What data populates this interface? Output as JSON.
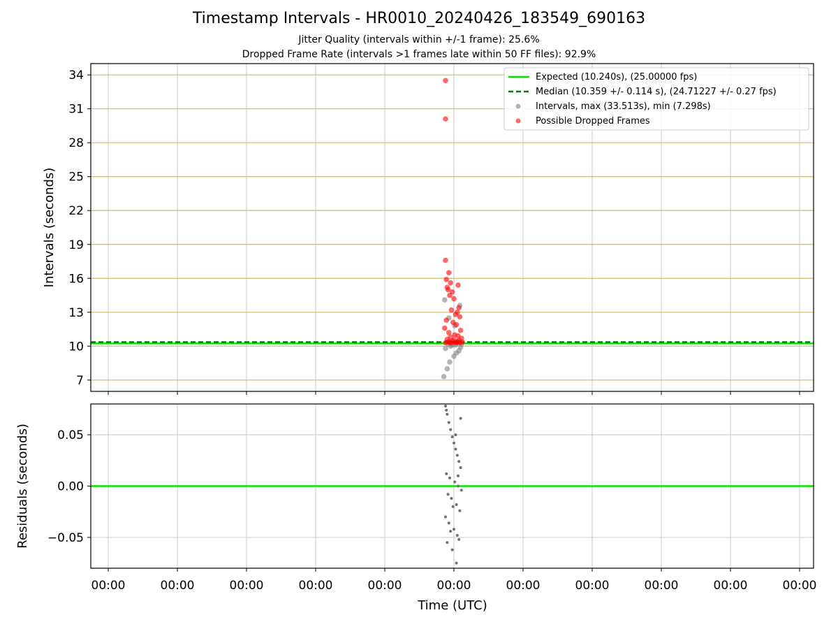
{
  "chart_data": [
    {
      "type": "scatter",
      "title": "Timestamp Intervals - HR0010_20240426_183549_690163",
      "subtitle_lines": [
        "Jitter Quality (intervals within +/-1 frame): 25.6%",
        "Dropped Frame Rate (intervals >1 frames late within 50 FF files): 92.9%"
      ],
      "ylabel": "Intervals (seconds)",
      "ylim": [
        6,
        35
      ],
      "yticks": [
        7,
        10,
        13,
        16,
        19,
        22,
        25,
        28,
        31,
        34
      ],
      "grid": true,
      "legend_position": "top-right",
      "expected": {
        "value": 10.24,
        "color": "#00e600",
        "label": "Expected (10.240s), (25.00000 fps)"
      },
      "median": {
        "value": 10.359,
        "color": "#007f00",
        "label": "Median (10.359 +/- 0.114 s), (24.71227 +/- 0.27 fps)"
      },
      "series": [
        {
          "name": "Intervals, max (33.513s), min (7.298s)",
          "color": "#808080",
          "x": [
            -0.12,
            -0.08,
            -0.05,
            0.0,
            0.03,
            0.06,
            -0.1,
            0.08,
            -0.04,
            0.02,
            -0.07,
            0.05,
            0.09,
            -0.02,
            -0.11,
            0.07,
            -0.06,
            0.01
          ],
          "y": [
            7.3,
            8.0,
            8.6,
            9.1,
            9.4,
            9.6,
            9.8,
            9.9,
            10.0,
            10.1,
            10.2,
            10.3,
            10.2,
            10.1,
            14.1,
            13.6,
            12.5,
            11.8
          ]
        },
        {
          "name": "Possible Dropped Frames",
          "color": "#ff0000",
          "x": [
            -0.1,
            -0.1,
            -0.1,
            -0.06,
            -0.09,
            -0.04,
            -0.08,
            -0.07,
            -0.02,
            0.05,
            -0.05,
            0.0,
            0.06,
            -0.03,
            0.04,
            0.02,
            -0.09,
            0.07,
            -0.01,
            0.03,
            -0.11,
            0.08,
            -0.06,
            0.01,
            0.05,
            -0.04,
            0.09,
            -0.08,
            0.0,
            0.06,
            -0.02,
            0.04,
            -0.07,
            0.1,
            -0.05,
            0.02,
            0.07,
            -0.1,
            0.03,
            -0.03
          ],
          "y": [
            33.5,
            30.1,
            17.6,
            16.5,
            15.9,
            15.6,
            15.2,
            15.0,
            14.8,
            15.4,
            14.5,
            14.2,
            13.4,
            13.2,
            13.0,
            12.8,
            12.3,
            12.6,
            12.1,
            11.9,
            11.6,
            11.4,
            11.2,
            11.0,
            10.9,
            10.8,
            10.7,
            10.6,
            10.55,
            10.5,
            10.45,
            10.4,
            10.38,
            10.36,
            10.34,
            10.33,
            10.32,
            10.31,
            10.3,
            10.29
          ]
        }
      ]
    },
    {
      "type": "scatter",
      "ylabel": "Residuals (seconds)",
      "xlabel": "Time (UTC)",
      "ylim": [
        -0.08,
        0.08
      ],
      "yticks": [
        -0.05,
        0.0,
        0.05
      ],
      "ytick_labels": [
        "−0.05",
        "0.00",
        "0.05"
      ],
      "xtick_labels": [
        "00:00",
        "00:00",
        "00:00",
        "00:00",
        "00:00",
        "00:00",
        "00:00",
        "00:00",
        "00:00",
        "00:00",
        "00:00"
      ],
      "zero_line_color": "#00e600",
      "series": [
        {
          "color": "#707070",
          "x": [
            -0.1,
            -0.08,
            -0.06,
            -0.04,
            -0.02,
            0.0,
            0.02,
            0.04,
            0.06,
            0.08,
            -0.09,
            -0.05,
            0.01,
            0.05,
            0.09,
            -0.07,
            -0.03,
            0.03,
            0.07,
            -0.1,
            -0.06,
            0.0,
            0.04,
            -0.08,
            -0.02,
            0.06,
            -0.04,
            0.02,
            0.08,
            -0.09,
            0.05,
            -0.01,
            0.03
          ],
          "y": [
            0.078,
            0.07,
            0.062,
            0.055,
            0.048,
            0.042,
            0.036,
            0.03,
            0.024,
            0.018,
            0.012,
            0.008,
            0.004,
            0.0,
            -0.004,
            -0.008,
            -0.012,
            -0.018,
            -0.024,
            -0.03,
            -0.036,
            -0.042,
            -0.048,
            -0.055,
            -0.062,
            -0.052,
            -0.044,
            0.05,
            0.066,
            0.074,
            0.01,
            -0.02,
            -0.075
          ]
        }
      ]
    }
  ]
}
